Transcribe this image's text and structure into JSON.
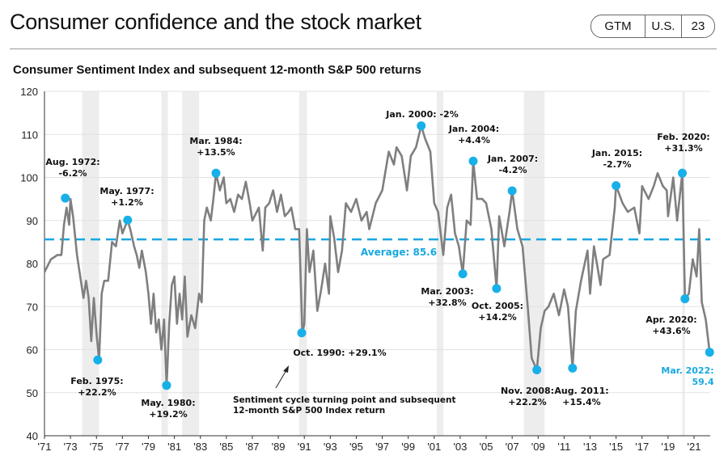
{
  "header": {
    "title": "Consumer confidence and the stock market",
    "badge": [
      "GTM",
      "U.S.",
      "23"
    ]
  },
  "chart_data": {
    "type": "line",
    "title": "Consumer Sentiment Index and subsequent 12-month S&P 500 returns",
    "xlim": [
      1971,
      2022.4
    ],
    "ylim": [
      40,
      120
    ],
    "yticks": [
      40,
      50,
      60,
      70,
      80,
      90,
      100,
      110,
      120
    ],
    "xticks": [
      "'71",
      "'73",
      "'75",
      "'77",
      "'79",
      "'81",
      "'83",
      "'85",
      "'87",
      "'89",
      "'91",
      "'93",
      "'95",
      "'97",
      "'99",
      "'01",
      "'03",
      "'05",
      "'07",
      "'09",
      "'11",
      "'13",
      "'15",
      "'17",
      "'19",
      "'21"
    ],
    "grid": "horizontal",
    "colors": {
      "line": "#7f7f80",
      "marker": "#18b0e8",
      "average": "#18a8e0",
      "band": "#ededed"
    },
    "average": {
      "value": 85.6,
      "label": "Average: 85.6"
    },
    "shaded_periods": [
      [
        1973.9,
        1975.2
      ],
      [
        1980.0,
        1980.5
      ],
      [
        1981.6,
        1982.9
      ],
      [
        1990.6,
        1991.2
      ],
      [
        2001.2,
        2001.7
      ],
      [
        2007.9,
        2009.5
      ],
      [
        2020.1,
        2020.3
      ]
    ],
    "series": [
      {
        "points": [
          [
            1971.0,
            78
          ],
          [
            1971.5,
            81
          ],
          [
            1972.0,
            82
          ],
          [
            1972.3,
            82
          ],
          [
            1972.5,
            89
          ],
          [
            1972.7,
            93
          ],
          [
            1972.9,
            89
          ],
          [
            1973.0,
            95
          ],
          [
            1973.2,
            91
          ],
          [
            1973.5,
            82
          ],
          [
            1973.8,
            76
          ],
          [
            1974.0,
            72
          ],
          [
            1974.2,
            76
          ],
          [
            1974.4,
            72
          ],
          [
            1974.6,
            62
          ],
          [
            1974.8,
            72
          ],
          [
            1975.0,
            64
          ],
          [
            1975.2,
            57.6
          ],
          [
            1975.4,
            73
          ],
          [
            1975.6,
            76
          ],
          [
            1975.9,
            76
          ],
          [
            1976.2,
            85
          ],
          [
            1976.5,
            84
          ],
          [
            1976.8,
            90
          ],
          [
            1977.0,
            87
          ],
          [
            1977.4,
            90.1
          ],
          [
            1977.6,
            88
          ],
          [
            1977.9,
            84
          ],
          [
            1978.1,
            82
          ],
          [
            1978.3,
            79
          ],
          [
            1978.5,
            83
          ],
          [
            1978.8,
            78
          ],
          [
            1979.0,
            73
          ],
          [
            1979.2,
            66
          ],
          [
            1979.4,
            73
          ],
          [
            1979.6,
            64
          ],
          [
            1979.8,
            67
          ],
          [
            1980.0,
            60
          ],
          [
            1980.2,
            67
          ],
          [
            1980.4,
            51.7
          ],
          [
            1980.6,
            66
          ],
          [
            1980.8,
            75
          ],
          [
            1981.0,
            77
          ],
          [
            1981.2,
            66
          ],
          [
            1981.4,
            73
          ],
          [
            1981.6,
            67
          ],
          [
            1981.8,
            77
          ],
          [
            1982.0,
            63
          ],
          [
            1982.3,
            68
          ],
          [
            1982.6,
            65
          ],
          [
            1982.9,
            73
          ],
          [
            1983.1,
            71
          ],
          [
            1983.3,
            90
          ],
          [
            1983.5,
            93
          ],
          [
            1983.8,
            90
          ],
          [
            1984.0,
            95
          ],
          [
            1984.2,
            101
          ],
          [
            1984.5,
            97
          ],
          [
            1984.8,
            100
          ],
          [
            1985.0,
            94
          ],
          [
            1985.3,
            95
          ],
          [
            1985.6,
            92
          ],
          [
            1985.9,
            96
          ],
          [
            1986.2,
            95
          ],
          [
            1986.5,
            99
          ],
          [
            1986.8,
            94
          ],
          [
            1987.0,
            90
          ],
          [
            1987.5,
            93
          ],
          [
            1987.8,
            83
          ],
          [
            1988.0,
            93
          ],
          [
            1988.3,
            94
          ],
          [
            1988.6,
            97
          ],
          [
            1988.9,
            92
          ],
          [
            1989.2,
            96
          ],
          [
            1989.5,
            91
          ],
          [
            1989.8,
            92
          ],
          [
            1990.0,
            93
          ],
          [
            1990.3,
            88
          ],
          [
            1990.6,
            88
          ],
          [
            1990.85,
            63.9
          ],
          [
            1991.0,
            66
          ],
          [
            1991.2,
            88
          ],
          [
            1991.4,
            78
          ],
          [
            1991.7,
            83
          ],
          [
            1992.0,
            69
          ],
          [
            1992.3,
            74
          ],
          [
            1992.6,
            80
          ],
          [
            1992.9,
            73
          ],
          [
            1993.0,
            91
          ],
          [
            1993.3,
            86
          ],
          [
            1993.6,
            78
          ],
          [
            1993.9,
            83
          ],
          [
            1994.2,
            94
          ],
          [
            1994.6,
            92
          ],
          [
            1995.0,
            95
          ],
          [
            1995.4,
            90
          ],
          [
            1995.8,
            92
          ],
          [
            1996.0,
            88
          ],
          [
            1996.5,
            94
          ],
          [
            1997.0,
            97
          ],
          [
            1997.5,
            106
          ],
          [
            1997.9,
            103
          ],
          [
            1998.1,
            107
          ],
          [
            1998.5,
            105
          ],
          [
            1998.9,
            97
          ],
          [
            1999.2,
            105
          ],
          [
            1999.6,
            107
          ],
          [
            2000.0,
            112
          ],
          [
            2000.3,
            109
          ],
          [
            2000.7,
            106
          ],
          [
            2001.0,
            94
          ],
          [
            2001.3,
            92
          ],
          [
            2001.7,
            82
          ],
          [
            2002.0,
            93
          ],
          [
            2002.3,
            96
          ],
          [
            2002.6,
            87
          ],
          [
            2002.9,
            84
          ],
          [
            2003.2,
            77.6
          ],
          [
            2003.5,
            90
          ],
          [
            2003.8,
            89
          ],
          [
            2004.0,
            103.8
          ],
          [
            2004.3,
            95
          ],
          [
            2004.7,
            95
          ],
          [
            2005.0,
            94
          ],
          [
            2005.4,
            88
          ],
          [
            2005.8,
            74.2
          ],
          [
            2006.0,
            91
          ],
          [
            2006.4,
            84
          ],
          [
            2006.8,
            92
          ],
          [
            2007.0,
            96.9
          ],
          [
            2007.4,
            88
          ],
          [
            2007.8,
            84
          ],
          [
            2008.2,
            70
          ],
          [
            2008.5,
            58
          ],
          [
            2008.9,
            55.3
          ],
          [
            2009.2,
            65
          ],
          [
            2009.5,
            69
          ],
          [
            2009.8,
            70
          ],
          [
            2010.2,
            73
          ],
          [
            2010.6,
            68
          ],
          [
            2011.0,
            74
          ],
          [
            2011.3,
            70
          ],
          [
            2011.65,
            55.7
          ],
          [
            2011.9,
            69
          ],
          [
            2012.3,
            76
          ],
          [
            2012.8,
            83
          ],
          [
            2013.0,
            73
          ],
          [
            2013.3,
            84
          ],
          [
            2013.8,
            75
          ],
          [
            2014.0,
            81
          ],
          [
            2014.5,
            82
          ],
          [
            2014.9,
            93
          ],
          [
            2015.0,
            98.1
          ],
          [
            2015.5,
            94
          ],
          [
            2015.9,
            92
          ],
          [
            2016.4,
            93
          ],
          [
            2016.8,
            87
          ],
          [
            2017.0,
            98
          ],
          [
            2017.5,
            95
          ],
          [
            2017.9,
            98
          ],
          [
            2018.2,
            101
          ],
          [
            2018.6,
            98
          ],
          [
            2018.9,
            97
          ],
          [
            2019.0,
            91
          ],
          [
            2019.4,
            100
          ],
          [
            2019.7,
            90
          ],
          [
            2020.1,
            101
          ],
          [
            2020.3,
            71.8
          ],
          [
            2020.6,
            73
          ],
          [
            2020.9,
            81
          ],
          [
            2021.2,
            77
          ],
          [
            2021.4,
            88
          ],
          [
            2021.6,
            71
          ],
          [
            2021.9,
            67
          ],
          [
            2022.2,
            59.4
          ]
        ]
      }
    ],
    "turning_points": [
      {
        "x": 1972.6,
        "y": 95.2,
        "label": "Aug. 1972:",
        "ret": "-6.2%"
      },
      {
        "x": 1975.1,
        "y": 57.6,
        "label": "Feb. 1975:",
        "ret": "+22.2%"
      },
      {
        "x": 1977.4,
        "y": 90.1,
        "label": "May. 1977:",
        "ret": "+1.2%"
      },
      {
        "x": 1980.4,
        "y": 51.7,
        "label": "May. 1980:",
        "ret": "+19.2%"
      },
      {
        "x": 1984.2,
        "y": 101,
        "label": "Mar. 1984:",
        "ret": "+13.5%"
      },
      {
        "x": 1990.8,
        "y": 63.9,
        "label": "Oct. 1990: +29.1%",
        "ret": ""
      },
      {
        "x": 2000.0,
        "y": 112,
        "label": "Jan. 2000: -2%",
        "ret": ""
      },
      {
        "x": 2003.2,
        "y": 77.6,
        "label": "Mar. 2003:",
        "ret": "+32.8%"
      },
      {
        "x": 2004.0,
        "y": 103.8,
        "label": "Jan. 2004:",
        "ret": "+4.4%"
      },
      {
        "x": 2005.8,
        "y": 74.2,
        "label": "Oct. 2005:",
        "ret": "+14.2%"
      },
      {
        "x": 2007.0,
        "y": 96.9,
        "label": "Jan. 2007:",
        "ret": "-4.2%"
      },
      {
        "x": 2008.9,
        "y": 55.3,
        "label": "Nov. 2008:",
        "ret": "+22.2%"
      },
      {
        "x": 2011.65,
        "y": 55.7,
        "label": "Aug. 2011:",
        "ret": "+15.4%"
      },
      {
        "x": 2015.0,
        "y": 98.1,
        "label": "Jan. 2015:",
        "ret": "-2.7%"
      },
      {
        "x": 2020.1,
        "y": 101,
        "label": "Feb. 2020:",
        "ret": "+31.3%"
      },
      {
        "x": 2020.3,
        "y": 71.8,
        "label": "Apr. 2020:",
        "ret": "+43.6%"
      },
      {
        "x": 2022.2,
        "y": 59.4,
        "label": "Mar. 2022:",
        "ret": "59.4",
        "current": true
      }
    ],
    "note": [
      "Sentiment cycle turning point and subsequent",
      "12-month S&P 500 Index return"
    ]
  }
}
